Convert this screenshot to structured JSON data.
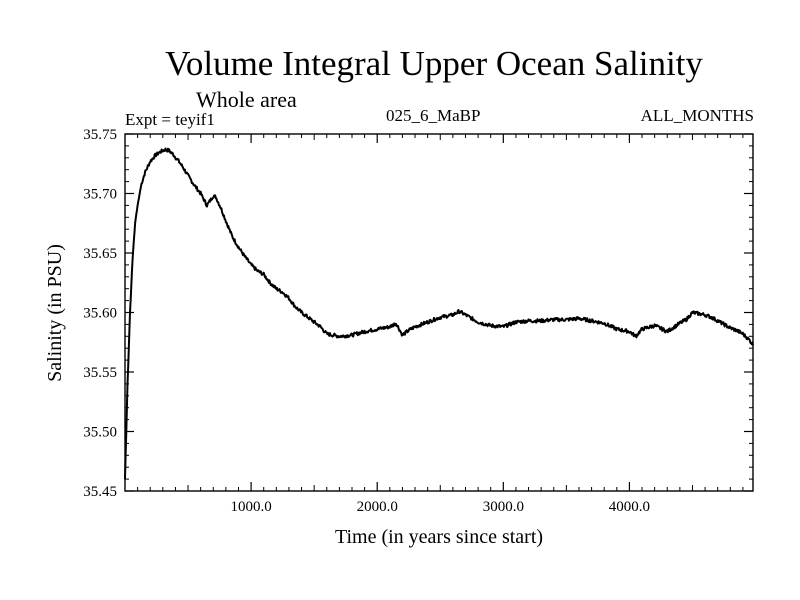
{
  "chart_data": {
    "type": "line",
    "title": "Volume Integral Upper Ocean Salinity",
    "subtitle": "Whole area",
    "expt_label": "Expt = teyif1",
    "period_label": "025_6_MaBP",
    "months_label": "ALL_MONTHS",
    "xlabel": "Time (in years since start)",
    "ylabel": "Salinity (in PSU)",
    "xlim": [
      0,
      4980
    ],
    "ylim": [
      35.45,
      35.75
    ],
    "x_ticks": [
      1000,
      2000,
      3000,
      4000
    ],
    "x_tick_labels": [
      "1000.0",
      "2000.0",
      "3000.0",
      "4000.0"
    ],
    "y_ticks": [
      35.45,
      35.5,
      35.55,
      35.6,
      35.65,
      35.7,
      35.75
    ],
    "y_tick_labels": [
      "35.45",
      "35.50",
      "35.55",
      "35.60",
      "35.65",
      "35.70",
      "35.75"
    ],
    "grid": false,
    "line_color": "#000000",
    "series": [
      {
        "name": "Salinity",
        "x": [
          0,
          20,
          40,
          60,
          80,
          100,
          130,
          160,
          200,
          240,
          280,
          320,
          350,
          380,
          420,
          460,
          500,
          550,
          600,
          650,
          700,
          720,
          760,
          800,
          850,
          900,
          950,
          1000,
          1050,
          1100,
          1150,
          1200,
          1250,
          1300,
          1350,
          1400,
          1450,
          1500,
          1550,
          1600,
          1700,
          1800,
          1900,
          2000,
          2100,
          2150,
          2200,
          2250,
          2300,
          2400,
          2500,
          2600,
          2650,
          2700,
          2800,
          2900,
          3000,
          3100,
          3200,
          3300,
          3400,
          3500,
          3600,
          3700,
          3800,
          3900,
          4000,
          4050,
          4100,
          4200,
          4300,
          4400,
          4450,
          4500,
          4550,
          4600,
          4650,
          4700,
          4750,
          4800,
          4850,
          4900,
          4950,
          4980
        ],
        "values": [
          35.46,
          35.54,
          35.6,
          35.645,
          35.675,
          35.69,
          35.708,
          35.718,
          35.727,
          35.732,
          35.735,
          35.737,
          35.736,
          35.733,
          35.728,
          35.722,
          35.715,
          35.707,
          35.7,
          35.69,
          35.698,
          35.697,
          35.688,
          35.677,
          35.664,
          35.655,
          35.647,
          35.64,
          35.635,
          35.632,
          35.625,
          35.62,
          35.617,
          35.612,
          35.605,
          35.6,
          35.596,
          35.592,
          35.588,
          35.582,
          35.58,
          35.581,
          35.584,
          35.586,
          35.588,
          35.591,
          35.581,
          35.585,
          35.588,
          35.592,
          35.596,
          35.598,
          35.601,
          35.598,
          35.592,
          35.589,
          35.588,
          35.592,
          35.593,
          35.593,
          35.594,
          35.594,
          35.595,
          35.593,
          35.591,
          35.586,
          35.584,
          35.58,
          35.586,
          35.589,
          35.584,
          35.591,
          35.594,
          35.6,
          35.599,
          35.598,
          35.596,
          35.593,
          35.59,
          35.587,
          35.585,
          35.582,
          35.577,
          35.573
        ]
      }
    ]
  }
}
